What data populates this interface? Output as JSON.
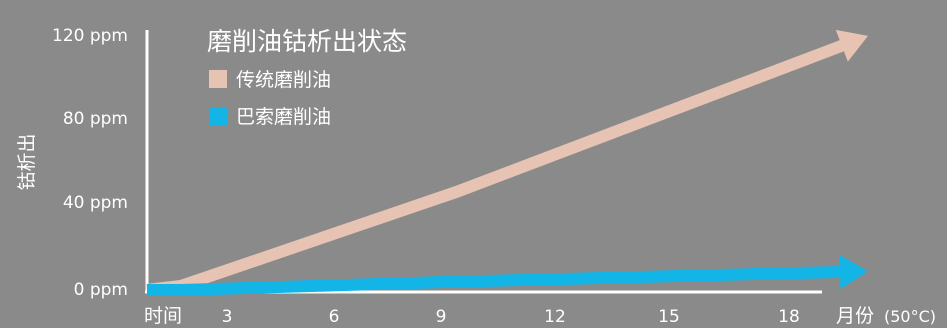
{
  "chart_data": {
    "type": "line",
    "title": "磨削油钴析出状态",
    "ylabel": "钴析出",
    "xlabel_prefix": "时间",
    "xlabel_suffix": "月份",
    "xlabel_unit": "(50°C)",
    "x_ticks": [
      "3",
      "6",
      "9",
      "12",
      "15",
      "18"
    ],
    "y_ticks": [
      "0 ppm",
      "40 ppm",
      "80 ppm",
      "120 ppm"
    ],
    "xlim": [
      0,
      21
    ],
    "ylim": [
      0,
      120
    ],
    "grid": false,
    "legend_position": "top-left",
    "series": [
      {
        "name": "传统磨削油",
        "color": "#e6c3b2",
        "x": [
          0,
          1,
          9,
          21
        ],
        "y": [
          0,
          2,
          47,
          122
        ]
      },
      {
        "name": "巴索磨削油",
        "color": "#12b5e6",
        "x": [
          0,
          1,
          9,
          21
        ],
        "y": [
          0,
          0,
          4,
          9
        ]
      }
    ]
  }
}
